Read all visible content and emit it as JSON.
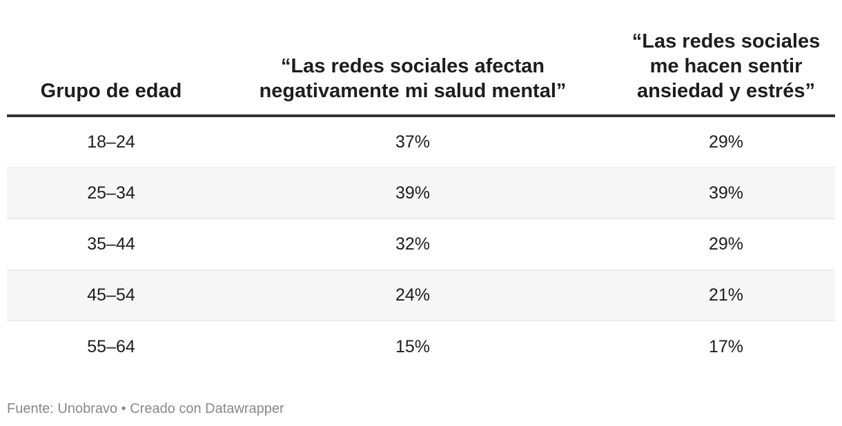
{
  "chart_data": {
    "type": "table",
    "columns": [
      "Grupo de edad",
      "“Las redes sociales afectan negativamente mi salud mental”",
      "“Las redes sociales me hacen sentir ansiedad y estrés”"
    ],
    "rows": [
      [
        "18–24",
        "37%",
        "29%"
      ],
      [
        "25–34",
        "39%",
        "39%"
      ],
      [
        "35–44",
        "32%",
        "29%"
      ],
      [
        "45–54",
        "24%",
        "21%"
      ],
      [
        "55–64",
        "15%",
        "17%"
      ]
    ]
  },
  "header": {
    "col1": "Grupo de edad",
    "col2_line1": "“Las redes sociales afectan",
    "col2_line2": "negativamente mi salud mental”",
    "col3_line1": "“Las redes sociales",
    "col3_line2": "me hacen sentir",
    "col3_line3": "ansiedad y estrés”"
  },
  "footer": {
    "text": "Fuente: Unobravo • Creado con Datawrapper"
  }
}
